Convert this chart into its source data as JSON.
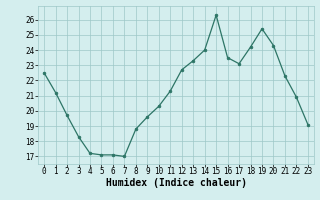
{
  "x": [
    0,
    1,
    2,
    3,
    4,
    5,
    6,
    7,
    8,
    9,
    10,
    11,
    12,
    13,
    14,
    15,
    16,
    17,
    18,
    19,
    20,
    21,
    22,
    23
  ],
  "y": [
    22.5,
    21.2,
    19.7,
    18.3,
    17.2,
    17.1,
    17.1,
    17.0,
    18.8,
    19.6,
    20.3,
    21.3,
    22.7,
    23.3,
    24.0,
    26.3,
    23.5,
    23.1,
    24.2,
    25.4,
    24.3,
    22.3,
    20.9,
    19.1
  ],
  "xlabel": "Humidex (Indice chaleur)",
  "ylabel": "",
  "xlim": [
    -0.5,
    23.5
  ],
  "ylim": [
    16.5,
    26.9
  ],
  "yticks": [
    17,
    18,
    19,
    20,
    21,
    22,
    23,
    24,
    25,
    26
  ],
  "xticks": [
    0,
    1,
    2,
    3,
    4,
    5,
    6,
    7,
    8,
    9,
    10,
    11,
    12,
    13,
    14,
    15,
    16,
    17,
    18,
    19,
    20,
    21,
    22,
    23
  ],
  "line_color": "#2d7566",
  "marker_color": "#2d7566",
  "bg_color": "#d4eeee",
  "grid_color": "#9ec8c8",
  "tick_label_fontsize": 5.5,
  "xlabel_fontsize": 7.0,
  "xlabel_fontweight": "bold"
}
